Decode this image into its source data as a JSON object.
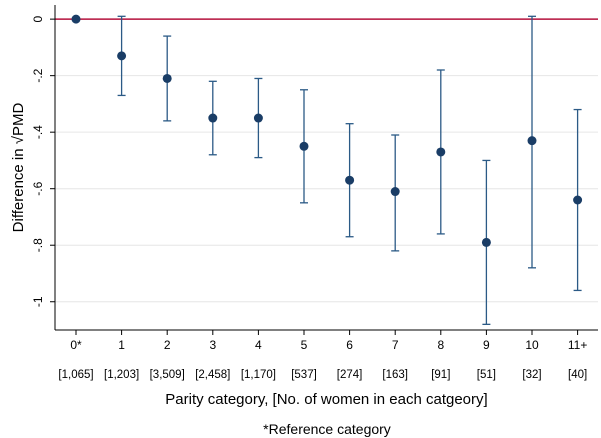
{
  "chart_data": {
    "type": "scatter",
    "subtype": "point-with-error-bars",
    "ylabel": "Difference in √PMD",
    "xlabel": "Parity category, [No. of women in each catgeory]",
    "footnote": "*Reference category",
    "ylim": [
      -1.1,
      0.05
    ],
    "yticks": [
      0,
      -0.2,
      -0.4,
      -0.6,
      -0.8,
      -1
    ],
    "ytick_labels": [
      "0",
      "-.2",
      "-.4",
      "-.6",
      "-.8",
      "-1"
    ],
    "grid": "horizontal",
    "reference_line": {
      "y": 0,
      "color": "#b5103c"
    },
    "point_color": "#1a3d66",
    "errorbar_color": "#2b5a86",
    "categories": [
      "0*",
      "1",
      "2",
      "3",
      "4",
      "5",
      "6",
      "7",
      "8",
      "9",
      "10",
      "11+"
    ],
    "counts": [
      "[1,065]",
      "[1,203]",
      "[3,509]",
      "[2,458]",
      "[1,170]",
      "[537]",
      "[274]",
      "[163]",
      "[91]",
      "[51]",
      "[32]",
      "[40]"
    ],
    "values": [
      0,
      -0.13,
      -0.21,
      -0.35,
      -0.35,
      -0.45,
      -0.57,
      -0.61,
      -0.47,
      -0.79,
      -0.43,
      -0.64
    ],
    "ci_lower": [
      null,
      -0.27,
      -0.36,
      -0.48,
      -0.49,
      -0.65,
      -0.77,
      -0.82,
      -0.76,
      -1.08,
      -0.88,
      -0.96
    ],
    "ci_upper": [
      null,
      0.01,
      -0.06,
      -0.22,
      -0.21,
      -0.25,
      -0.37,
      -0.41,
      -0.18,
      -0.5,
      0.01,
      -0.32
    ]
  }
}
